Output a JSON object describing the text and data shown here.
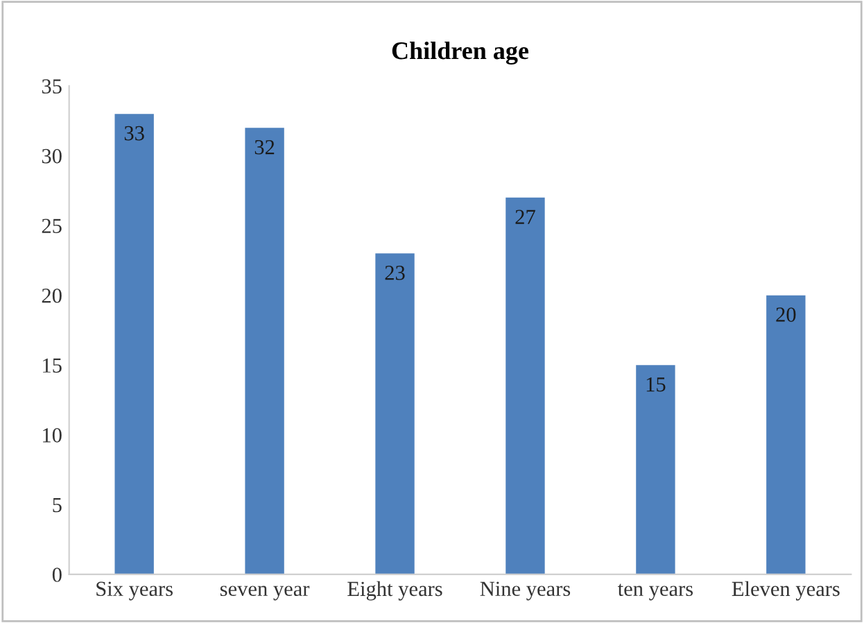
{
  "chart_data": {
    "type": "bar",
    "title": "Children age",
    "categories": [
      "Six years",
      "seven year",
      "Eight years",
      "Nine years",
      "ten years",
      "Eleven years"
    ],
    "values": [
      33,
      32,
      23,
      27,
      15,
      20
    ],
    "color": "#4f81bd",
    "ylim": [
      0,
      35
    ],
    "yticks": [
      0,
      5,
      10,
      15,
      20,
      25,
      30,
      35
    ],
    "grid": false,
    "data_labels": true
  }
}
